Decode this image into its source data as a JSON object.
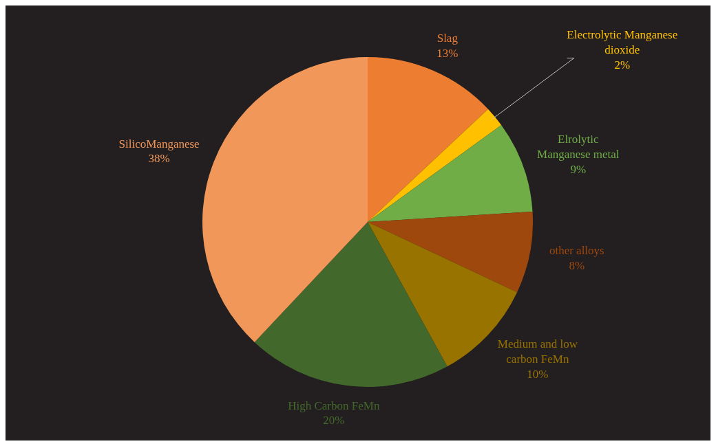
{
  "chart_data": {
    "type": "pie",
    "categories": [
      "Slag",
      "Electrolytic Manganese dioxide",
      "Elrolytic Manganese metal",
      "other alloys",
      "Medium and low carbon FeMn",
      "High Carbon FeMn",
      "SilicoManganese"
    ],
    "values": [
      13,
      2,
      9,
      8,
      10,
      20,
      38
    ],
    "value_labels": [
      "13%",
      "2%",
      "9%",
      "8%",
      "10%",
      "20%",
      "38%"
    ],
    "colors": [
      "#ed7d31",
      "#ffc000",
      "#70ad47",
      "#9e480e",
      "#997300",
      "#43682b",
      "#f1975a"
    ],
    "legend": false
  }
}
